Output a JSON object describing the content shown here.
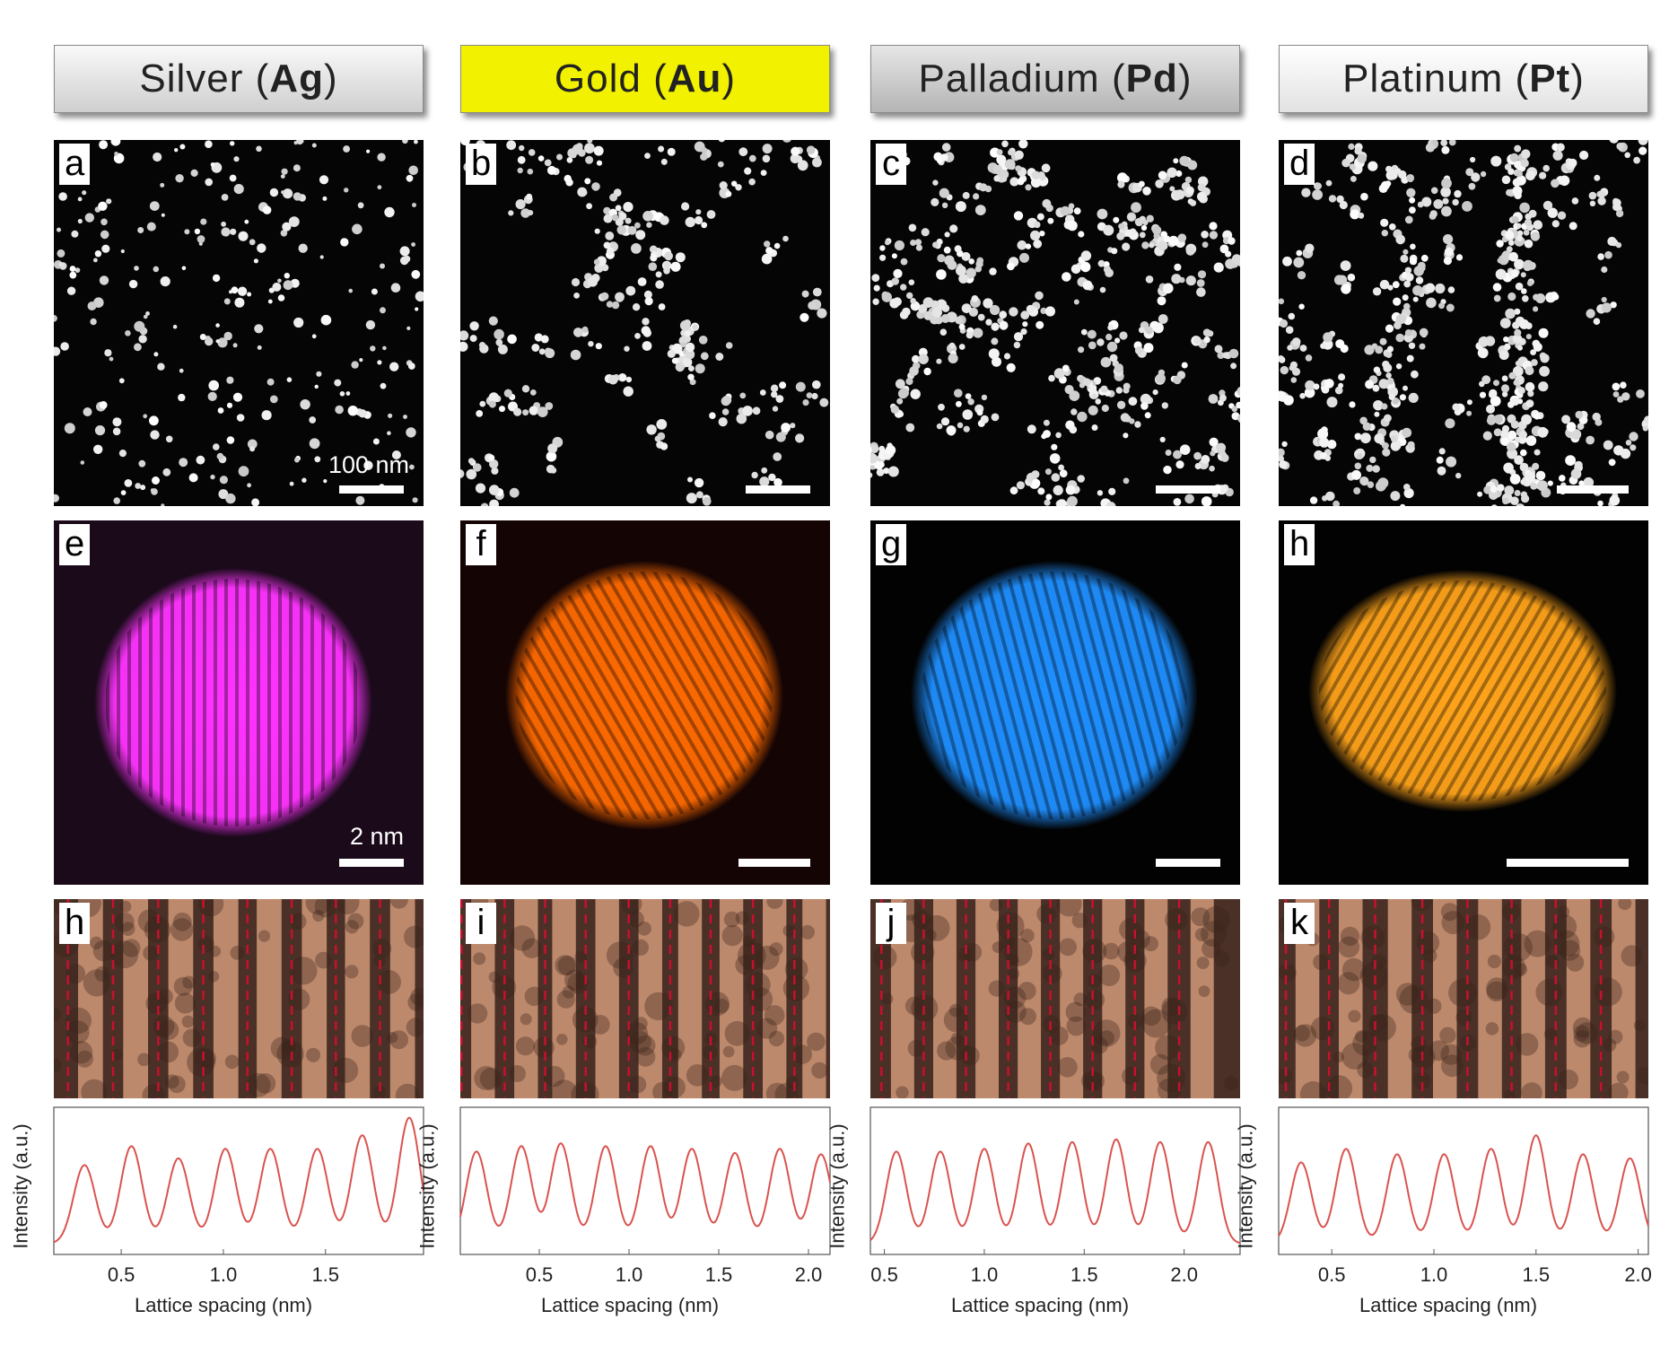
{
  "headers": [
    {
      "name": "Silver",
      "symbol": "Ag",
      "open": "(",
      "close": ")"
    },
    {
      "name": "Gold",
      "symbol": "Au",
      "open": "(",
      "close": ")"
    },
    {
      "name": "Palladium",
      "symbol": "Pd",
      "open": "(",
      "close": ")"
    },
    {
      "name": "Platinum",
      "symbol": "Pt",
      "open": "(",
      "close": ")"
    }
  ],
  "panel_labels": {
    "row1": [
      "a",
      "b",
      "c",
      "d"
    ],
    "row2": [
      "e",
      "f",
      "g",
      "h"
    ],
    "row3": [
      "h",
      "i",
      "j",
      "k"
    ]
  },
  "scale_bars": {
    "row1_label": "100 nm",
    "row2_label": "2 nm"
  },
  "colors": {
    "silver_particle": "#ff33ff",
    "gold_particle": "#ff6a00",
    "palladium_particle": "#1f8fff",
    "platinum_particle": "#ffa31a",
    "stripe_dash": "#c8102e",
    "profile_line": "#d9534f",
    "gold_header": "#f2f200"
  },
  "chart_data": [
    {
      "type": "line",
      "xlabel": "Lattice spacing (nm)",
      "ylabel": "Intensity (a.u.)",
      "xticks": [
        "0.5",
        "1.0",
        "1.5"
      ],
      "xlim": [
        0.17,
        1.98
      ],
      "series": [
        {
          "peaks": [
            0.32,
            0.55,
            0.78,
            1.01,
            1.23,
            1.46,
            1.68,
            1.91
          ],
          "amplitudes": [
            0.58,
            0.72,
            0.63,
            0.7,
            0.7,
            0.7,
            0.8,
            0.93
          ]
        }
      ]
    },
    {
      "type": "line",
      "xlabel": "Lattice spacing (nm)",
      "ylabel": "Intensity (a.u.)",
      "xticks": [
        "0.5",
        "1.0",
        "1.5",
        "2.0"
      ],
      "xlim": [
        0.06,
        2.12
      ],
      "series": [
        {
          "peaks": [
            0.15,
            0.4,
            0.62,
            0.87,
            1.12,
            1.35,
            1.59,
            1.84,
            2.07
          ],
          "amplitudes": [
            0.68,
            0.72,
            0.74,
            0.72,
            0.72,
            0.7,
            0.67,
            0.7,
            0.66
          ]
        }
      ]
    },
    {
      "type": "line",
      "xlabel": "Lattice spacing (nm)",
      "ylabel": "Intensity (a.u.)",
      "xticks": [
        "0.5",
        "1.0",
        "1.5",
        "2.0"
      ],
      "xlim": [
        0.43,
        2.28
      ],
      "series": [
        {
          "peaks": [
            0.56,
            0.78,
            1.0,
            1.22,
            1.44,
            1.66,
            1.88,
            2.12
          ],
          "amplitudes": [
            0.68,
            0.68,
            0.7,
            0.74,
            0.75,
            0.77,
            0.75,
            0.75
          ]
        }
      ]
    },
    {
      "type": "line",
      "xlabel": "Lattice spacing (nm)",
      "ylabel": "Intensity (a.u.)",
      "xticks": [
        "0.5",
        "1.0",
        "1.5",
        "2.0"
      ],
      "xlim": [
        0.24,
        2.05
      ],
      "series": [
        {
          "peaks": [
            0.35,
            0.57,
            0.82,
            1.05,
            1.28,
            1.5,
            1.73,
            1.96
          ],
          "amplitudes": [
            0.6,
            0.7,
            0.66,
            0.66,
            0.7,
            0.8,
            0.66,
            0.63
          ]
        }
      ]
    }
  ]
}
